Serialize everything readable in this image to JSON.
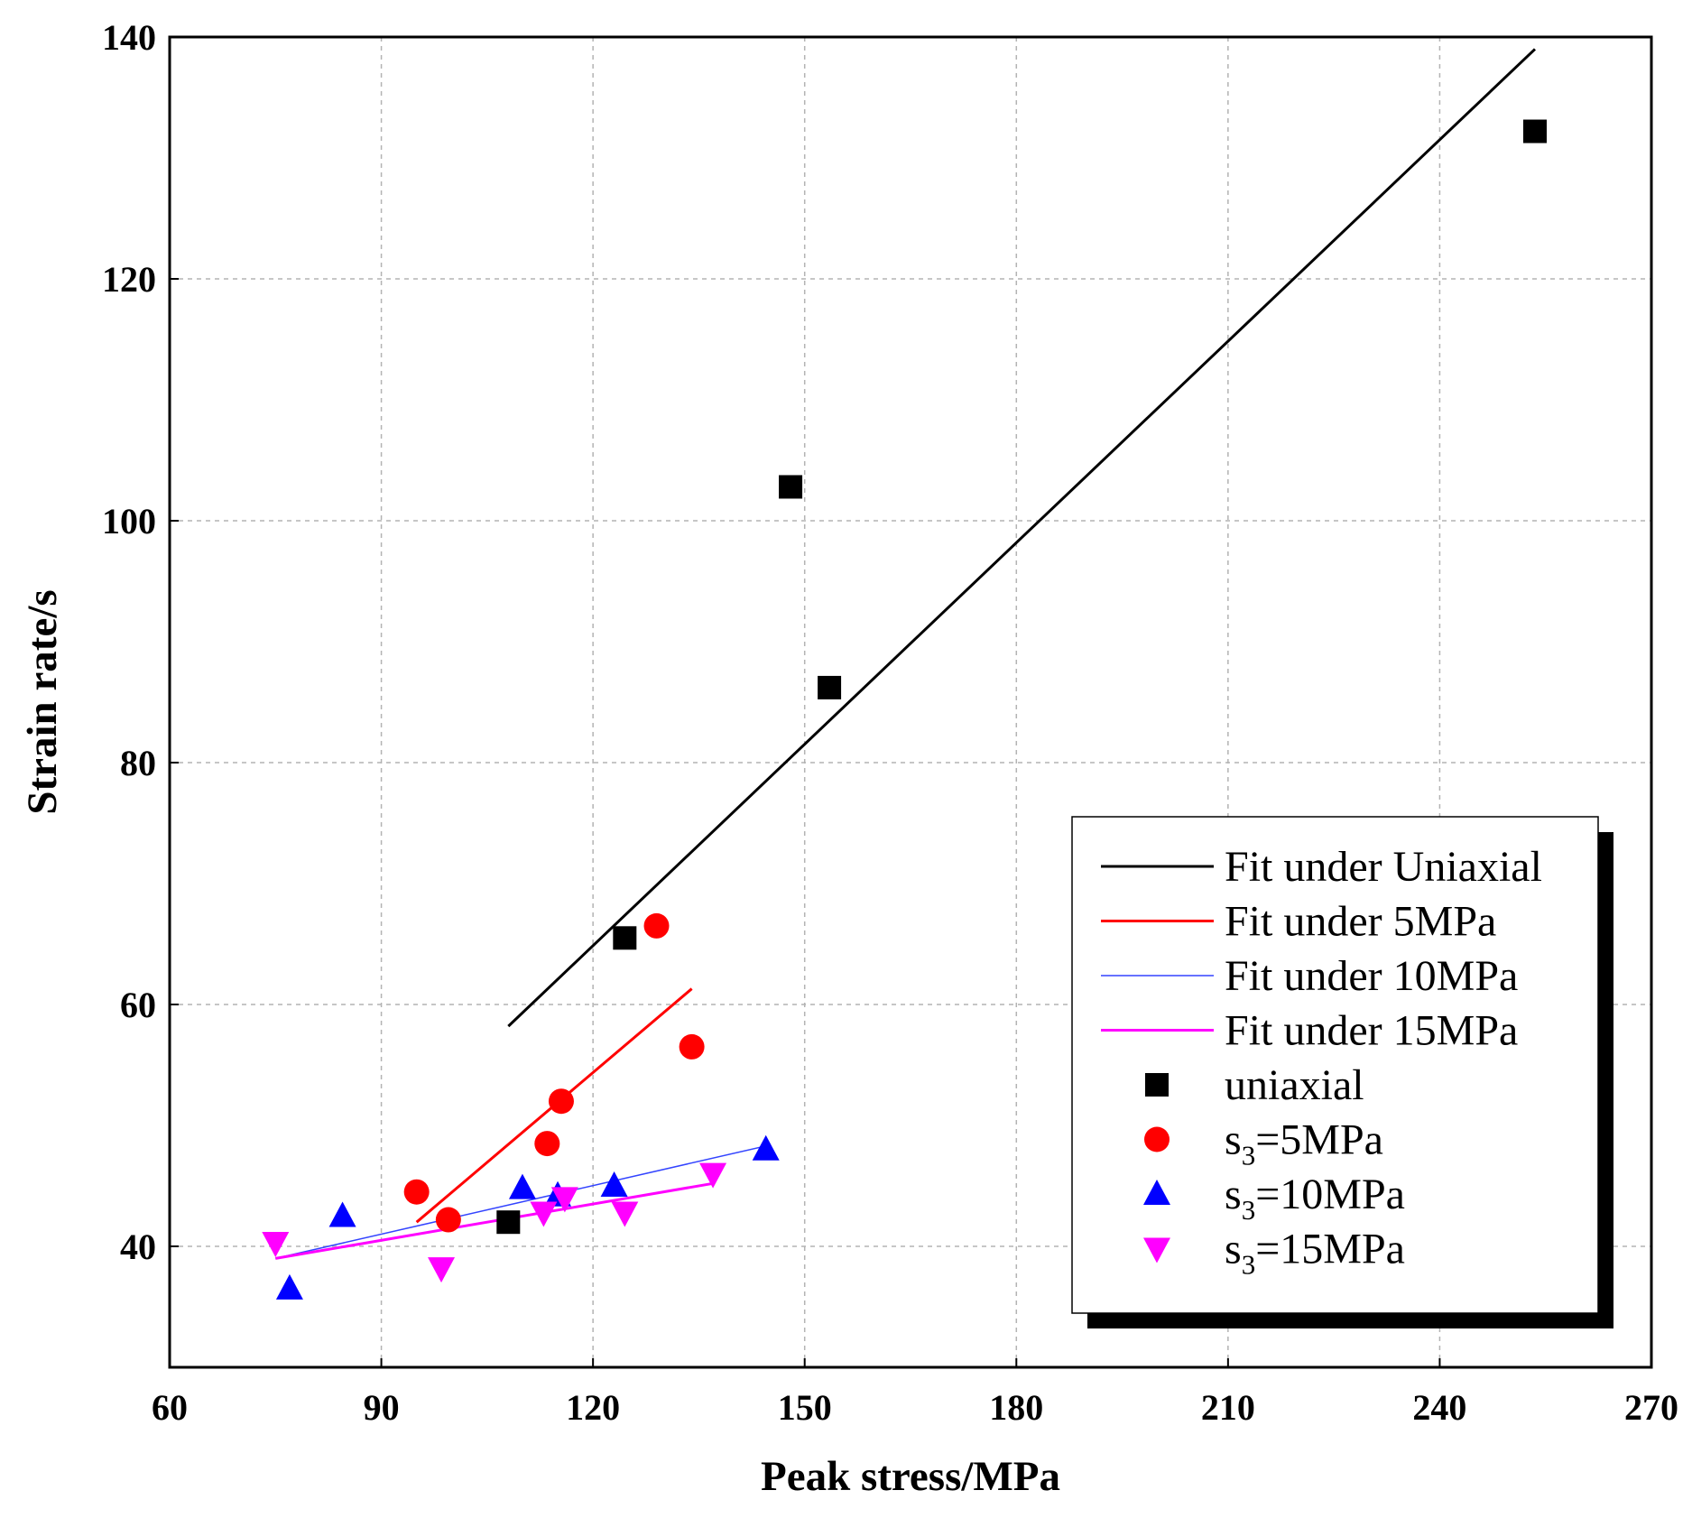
{
  "chart_data": {
    "type": "scatter",
    "title": "",
    "xlabel": "Peak stress/MPa",
    "ylabel": "Strain rate/s",
    "xlim": [
      60,
      270
    ],
    "ylim": [
      30,
      140
    ],
    "xticks": [
      60,
      90,
      120,
      150,
      180,
      210,
      240,
      270
    ],
    "yticks": [
      40,
      60,
      80,
      100,
      120,
      140
    ],
    "xtick_labels": [
      "60",
      "90",
      "120",
      "150",
      "180",
      "210",
      "240",
      "270"
    ],
    "ytick_labels": [
      "40",
      "60",
      "80",
      "100",
      "120",
      "140"
    ],
    "grid": true,
    "legend_position": "bottom-right",
    "series": [
      {
        "name": "uniaxial",
        "label_main": "uniaxial",
        "label_sub": "",
        "label_tail": "",
        "marker": "square",
        "color": "#000000",
        "points": [
          [
            108,
            42
          ],
          [
            124.5,
            65.5
          ],
          [
            148,
            102.8
          ],
          [
            153.5,
            86.2
          ],
          [
            253.5,
            132.2
          ]
        ]
      },
      {
        "name": "s3=5MPa",
        "label_main": "s",
        "label_sub": "3",
        "label_tail": "=5MPa",
        "marker": "circle",
        "color": "#ff0000",
        "points": [
          [
            95,
            44.5
          ],
          [
            99.5,
            42.2
          ],
          [
            113.5,
            48.5
          ],
          [
            115.5,
            52
          ],
          [
            129,
            66.5
          ],
          [
            134,
            56.5
          ]
        ]
      },
      {
        "name": "s3=10MPa",
        "label_main": "s",
        "label_sub": "3",
        "label_tail": "=10MPa",
        "marker": "triangle-up",
        "color": "#0000ff",
        "points": [
          [
            77,
            36.5
          ],
          [
            84.5,
            42.5
          ],
          [
            110,
            44.8
          ],
          [
            115,
            44.2
          ],
          [
            123,
            45
          ],
          [
            144.5,
            48
          ]
        ]
      },
      {
        "name": "s3=15MPa",
        "label_main": "s",
        "label_sub": "3",
        "label_tail": "=15MPa",
        "marker": "triangle-down",
        "color": "#ff00ff",
        "points": [
          [
            75,
            40.3
          ],
          [
            98.5,
            38.2
          ],
          [
            113,
            42.8
          ],
          [
            116,
            44
          ],
          [
            124.5,
            42.8
          ],
          [
            137,
            46
          ]
        ]
      }
    ],
    "fits": [
      {
        "name": "Fit under Uniaxial",
        "color": "#000000",
        "width": 3,
        "x": [
          108,
          253.5
        ],
        "y": [
          58.2,
          139
        ]
      },
      {
        "name": "Fit under 5MPa",
        "color": "#ff0000",
        "width": 3,
        "x": [
          95,
          134
        ],
        "y": [
          42,
          61.3
        ]
      },
      {
        "name": "Fit under 10MPa",
        "color": "#3344ff",
        "width": 1.5,
        "x": [
          75,
          144.5
        ],
        "y": [
          39,
          48.3
        ]
      },
      {
        "name": "Fit under 15MPa",
        "color": "#ff00ff",
        "width": 3,
        "x": [
          75,
          137
        ],
        "y": [
          39,
          45.2
        ]
      }
    ]
  }
}
